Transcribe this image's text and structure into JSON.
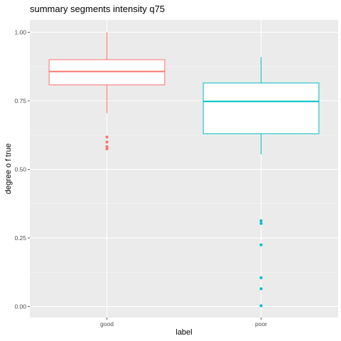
{
  "chart_data": {
    "type": "box",
    "title": "summary segments intensity q75",
    "xlabel": "label",
    "ylabel": "degree o f true",
    "categories": [
      "good",
      "poor"
    ],
    "ylim": [
      -0.04,
      1.045
    ],
    "yticks": [
      0.0,
      0.25,
      0.5,
      0.75,
      1.0
    ],
    "ytick_labels": [
      "0.00",
      "0.25",
      "0.50",
      "0.75",
      "1.00"
    ],
    "grid": true,
    "legend": "none",
    "background": "#ebebeb",
    "boxes": [
      {
        "category": "good",
        "color": "#F8766D",
        "whisker_low": 0.705,
        "q1": 0.808,
        "median": 0.857,
        "q3": 0.9,
        "whisker_high": 1.0,
        "outliers": [
          0.618,
          0.6,
          0.583,
          0.575
        ]
      },
      {
        "category": "poor",
        "color": "#00BFC4",
        "whisker_low": 0.555,
        "q1": 0.63,
        "median": 0.748,
        "q3": 0.815,
        "whisker_high": 0.91,
        "outliers": [
          0.313,
          0.303,
          0.225,
          0.105,
          0.065,
          0.003
        ]
      }
    ]
  }
}
